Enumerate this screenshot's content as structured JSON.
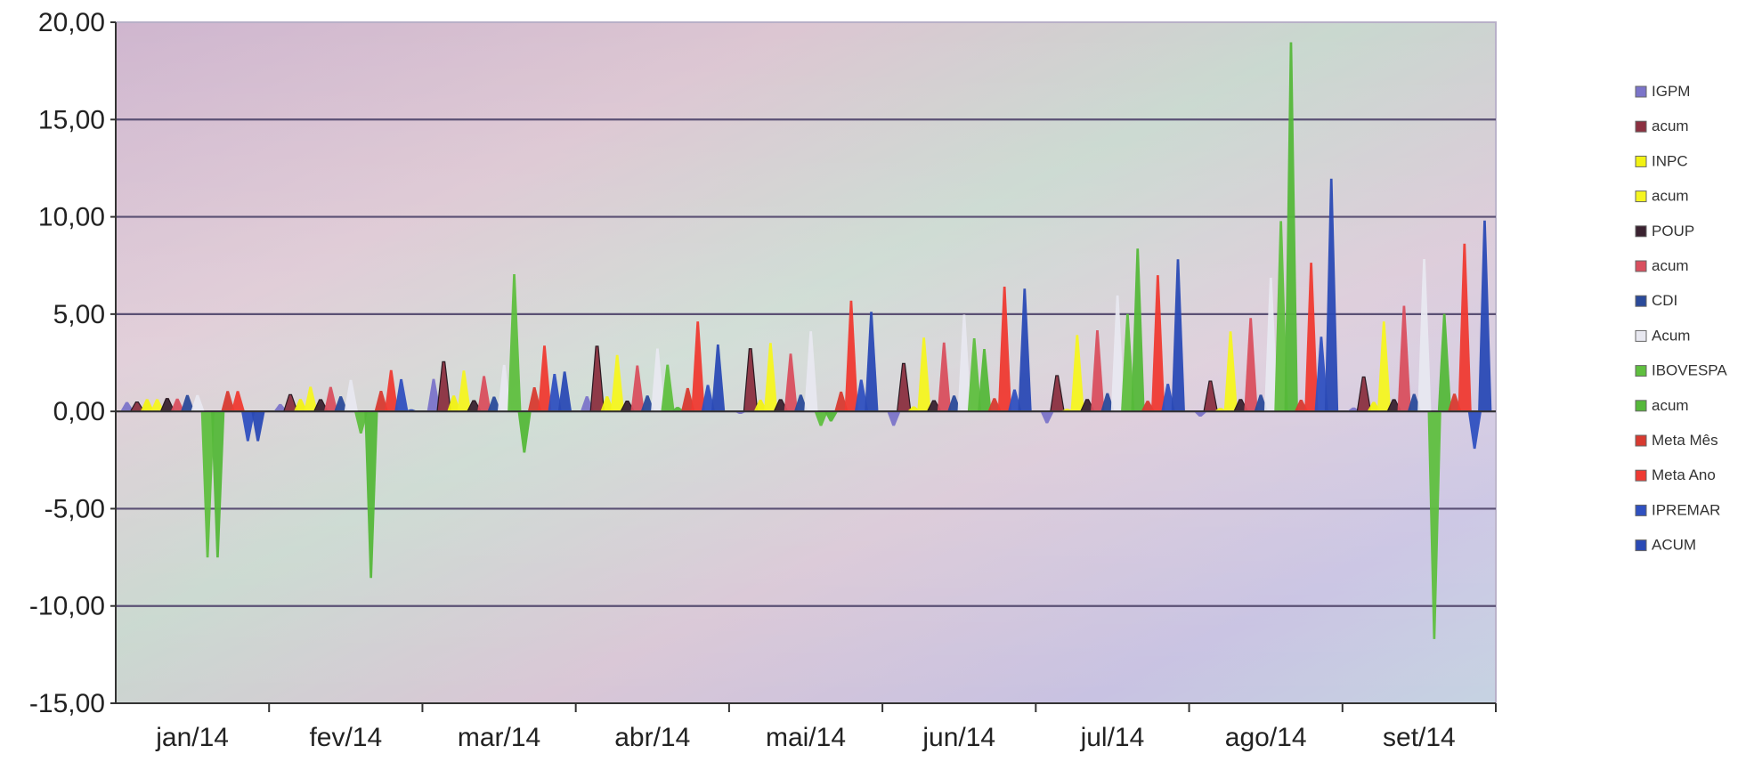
{
  "chart_data": {
    "type": "area",
    "title": "",
    "xlabel": "",
    "ylabel": "",
    "ylim": [
      -15,
      20
    ],
    "y_ticks": [
      "20,00",
      "15,00",
      "10,00",
      "5,00",
      "0,00",
      "-5,00",
      "-10,00",
      "-15,00"
    ],
    "categories": [
      "jan/14",
      "fev/14",
      "mar/14",
      "abr/14",
      "mai/14",
      "jun/14",
      "jul/14",
      "ago/14",
      "set/14"
    ],
    "grid": true,
    "legend_position": "right",
    "series": [
      {
        "name": "IGPM",
        "color": "#7b74c9",
        "values": [
          0.48,
          0.38,
          1.67,
          0.78,
          -0.13,
          -0.74,
          -0.61,
          -0.27,
          0.2
        ]
      },
      {
        "name": "acum",
        "color": "#8b3040",
        "values": [
          0.48,
          0.86,
          2.55,
          3.35,
          3.22,
          2.46,
          1.84,
          1.56,
          1.77
        ]
      },
      {
        "name": "INPC",
        "color": "#f2f213",
        "values": [
          0.63,
          0.64,
          0.82,
          0.78,
          0.6,
          0.26,
          0.13,
          0.18,
          0.49
        ]
      },
      {
        "name": "acum",
        "color": "#f5f520",
        "values": [
          0.63,
          1.27,
          2.1,
          2.9,
          3.52,
          3.79,
          3.93,
          4.11,
          4.62
        ]
      },
      {
        "name": "POUP",
        "color": "#3a2230",
        "values": [
          0.66,
          0.6,
          0.55,
          0.53,
          0.6,
          0.55,
          0.61,
          0.61,
          0.6
        ]
      },
      {
        "name": "acum",
        "color": "#d94f5e",
        "values": [
          0.66,
          1.26,
          1.82,
          2.36,
          2.97,
          3.54,
          4.17,
          4.8,
          5.43
        ]
      },
      {
        "name": "CDI",
        "color": "#2a4a9a",
        "values": [
          0.84,
          0.78,
          0.76,
          0.82,
          0.86,
          0.82,
          0.94,
          0.86,
          0.9
        ]
      },
      {
        "name": "Acum",
        "color": "#e8e8f0",
        "values": [
          0.84,
          1.62,
          2.39,
          3.23,
          4.12,
          4.97,
          5.96,
          6.87,
          7.83
        ]
      },
      {
        "name": "IBOVESPA",
        "color": "#5fbf3f",
        "values": [
          -7.51,
          -1.14,
          7.05,
          2.4,
          -0.75,
          3.76,
          5.01,
          9.78,
          -11.7
        ]
      },
      {
        "name": "acum",
        "color": "#55b83a",
        "values": [
          -7.51,
          -8.56,
          -2.12,
          0.23,
          -0.52,
          3.21,
          8.37,
          18.97,
          5.01
        ]
      },
      {
        "name": "Meta Mês",
        "color": "#d83a30",
        "values": [
          1.05,
          1.06,
          1.24,
          1.2,
          1.02,
          0.68,
          0.55,
          0.6,
          0.91
        ]
      },
      {
        "name": "Meta Ano",
        "color": "#ef3a32",
        "values": [
          1.05,
          2.12,
          3.38,
          4.62,
          5.69,
          6.41,
          7,
          7.64,
          8.62
        ]
      },
      {
        "name": "IPREMAR",
        "color": "#2f50c0",
        "values": [
          -1.53,
          1.66,
          1.93,
          1.36,
          1.63,
          1.13,
          1.42,
          3.84,
          -1.92
        ]
      },
      {
        "name": "ACUM",
        "color": "#2a4ab5",
        "values": [
          -1.53,
          0.11,
          2.05,
          3.44,
          5.12,
          6.31,
          7.82,
          11.96,
          9.81
        ]
      }
    ]
  }
}
